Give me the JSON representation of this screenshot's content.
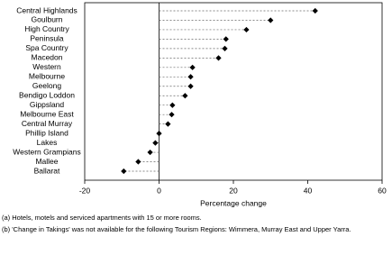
{
  "chart_data": {
    "type": "dot",
    "categories": [
      "Central Highlands",
      "Goulburn",
      "High Country",
      "Peninsula",
      "Spa Country",
      "Macedon",
      "Western",
      "Melbourne",
      "Geelong",
      "Bendigo Loddon",
      "Gippsland",
      "Melbourne East",
      "Central Murray",
      "Phillip Island",
      "Lakes",
      "Western Grampians",
      "Mallee",
      "Ballarat"
    ],
    "values": [
      42,
      30,
      23.5,
      18,
      17.7,
      16,
      9,
      8.5,
      8.5,
      7,
      3.6,
      3.4,
      2.4,
      0,
      -1,
      -2.4,
      -5.6,
      -9.5
    ],
    "color": "#000000",
    "xlim": [
      -20,
      60
    ],
    "xticks": [
      -20,
      0,
      20,
      40,
      60
    ],
    "xlabel": "Percentage change",
    "notes": [
      "(a) Hotels, motels and serviced apartments with 15 or more rooms.",
      "(b) 'Change in Takings' was not available for the following Tourism Regions: Wimmera, Murray East and Upper Yarra."
    ]
  }
}
